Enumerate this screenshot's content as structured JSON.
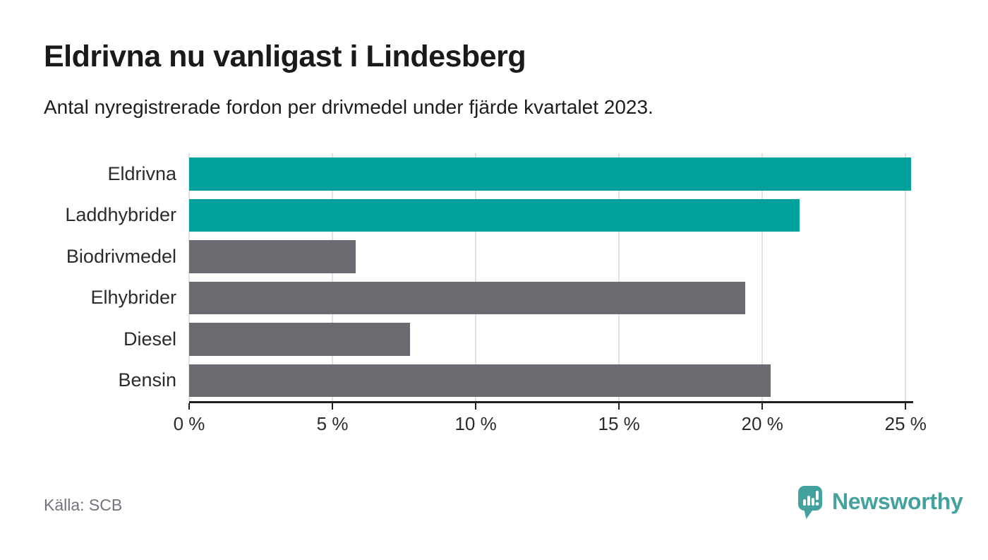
{
  "header": {
    "title": "Eldrivna nu vanligast i Lindesberg",
    "subtitle": "Antal nyregistrerade fordon per drivmedel under fjärde kvartalet 2023."
  },
  "chart_data": {
    "type": "bar",
    "orientation": "horizontal",
    "title": "Eldrivna nu vanligast i Lindesberg",
    "subtitle": "Antal nyregistrerade fordon per drivmedel under fjärde kvartalet 2023.",
    "categories": [
      "Eldrivna",
      "Laddhybrider",
      "Biodrivmedel",
      "Elhybrider",
      "Diesel",
      "Bensin"
    ],
    "values": [
      25.2,
      21.3,
      5.8,
      19.4,
      7.7,
      20.3
    ],
    "unit": "%",
    "xlim": [
      0,
      25.24
    ],
    "xticks": [
      0,
      5,
      10,
      15,
      20,
      25
    ],
    "xtick_labels": [
      "0 %",
      "5 %",
      "10 %",
      "15 %",
      "20 %",
      "25 %"
    ],
    "bar_colors": [
      "#00a19a",
      "#00a19a",
      "#6c6a70",
      "#6c6a70",
      "#6c6a70",
      "#6c6a70"
    ],
    "highlight_color": "#00a19a",
    "default_color": "#6c6a70",
    "grid": true,
    "gridline_color": "#e2e2e4",
    "axis_color": "#202020",
    "legend": "none",
    "xlabel": "",
    "ylabel": ""
  },
  "footer": {
    "source": "Källa: SCB",
    "brand_name": "Newsworthy",
    "brand_color": "#43a29d",
    "logo_icon": "speech-bubble-bar-chart-icon"
  }
}
